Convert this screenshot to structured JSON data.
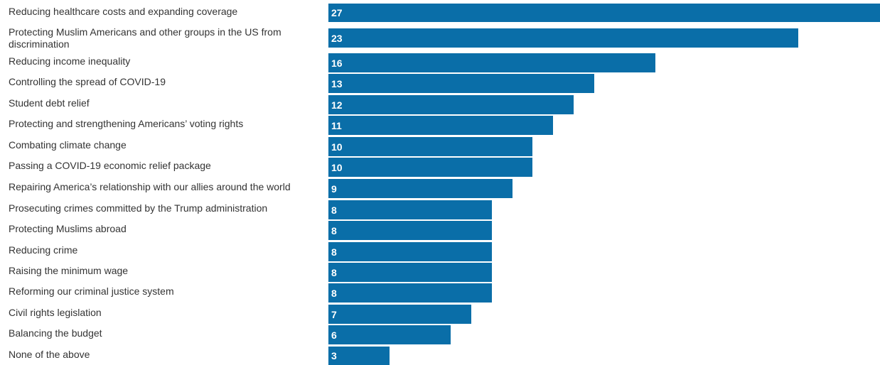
{
  "chart_data": {
    "type": "bar",
    "orientation": "horizontal",
    "title": "",
    "xlabel": "",
    "ylabel": "",
    "xlim": [
      0,
      27
    ],
    "grid": false,
    "bar_color": "#0a6ea8",
    "data_labels": "inside-left",
    "categories": [
      "Reducing healthcare costs and expanding coverage",
      "Protecting Muslim Americans and other groups in the US from discrimination",
      "Reducing income inequality",
      "Controlling the spread of COVID-19",
      "Student debt relief",
      "Protecting and strengthening Americans’ voting rights",
      "Combating climate change",
      "Passing a COVID-19 economic relief package",
      "Repairing America’s relationship with our allies around the world",
      "Prosecuting crimes committed by the Trump administration",
      "Protecting Muslims abroad",
      "Reducing crime",
      "Raising the minimum wage",
      "Reforming our criminal justice system",
      "Civil rights legislation",
      "Balancing the budget",
      "None of the above"
    ],
    "values": [
      27,
      23,
      16,
      13,
      12,
      11,
      10,
      10,
      9,
      8,
      8,
      8,
      8,
      8,
      7,
      6,
      3
    ]
  }
}
